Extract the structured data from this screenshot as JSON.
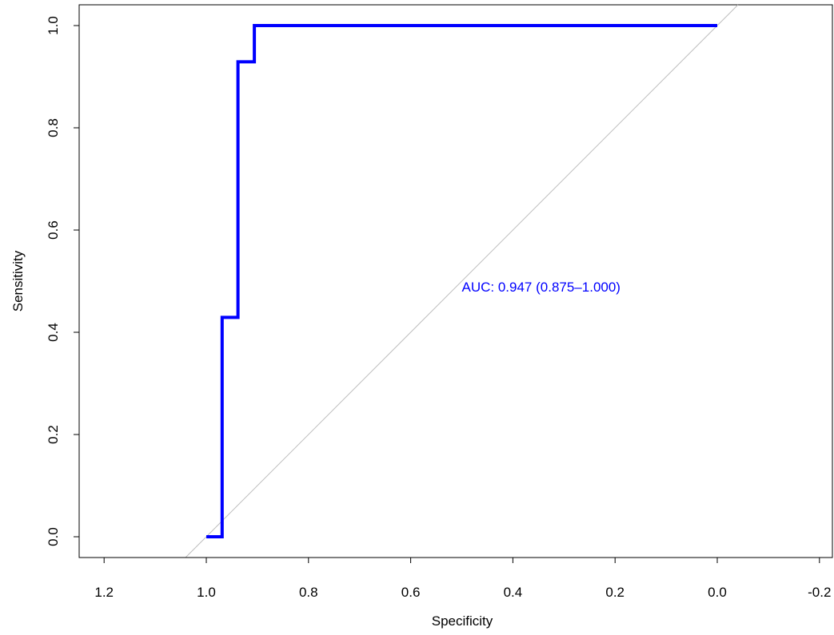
{
  "chart_data": {
    "type": "line",
    "title": "",
    "xlabel": "Specificity",
    "ylabel": "Sensitivity",
    "xlim": [
      1.2,
      -0.2
    ],
    "ylim": [
      0,
      1
    ],
    "x_reversed": true,
    "x_ticks": [
      "1.2",
      "1.0",
      "0.8",
      "0.6",
      "0.4",
      "0.2",
      "0.0",
      "-0.2"
    ],
    "y_ticks": [
      "0.0",
      "0.2",
      "0.4",
      "0.6",
      "0.8",
      "1.0"
    ],
    "grid": false,
    "series": [
      {
        "color": "#0000ff",
        "style": "step",
        "x": [
          1.0,
          0.969,
          0.969,
          0.938,
          0.938,
          0.906,
          0.906,
          0.0
        ],
        "y": [
          0.0,
          0.0,
          0.429,
          0.429,
          0.929,
          0.929,
          1.0,
          1.0
        ]
      }
    ],
    "reference_line": {
      "color": "#bebebe",
      "from": [
        1.0,
        0.0
      ],
      "to": [
        0.0,
        1.0
      ]
    },
    "annotations": [
      {
        "text": "AUC: 0.947 (0.875–1.000)",
        "x": 0.5,
        "y": 0.48,
        "color": "#0000ff"
      }
    ]
  }
}
